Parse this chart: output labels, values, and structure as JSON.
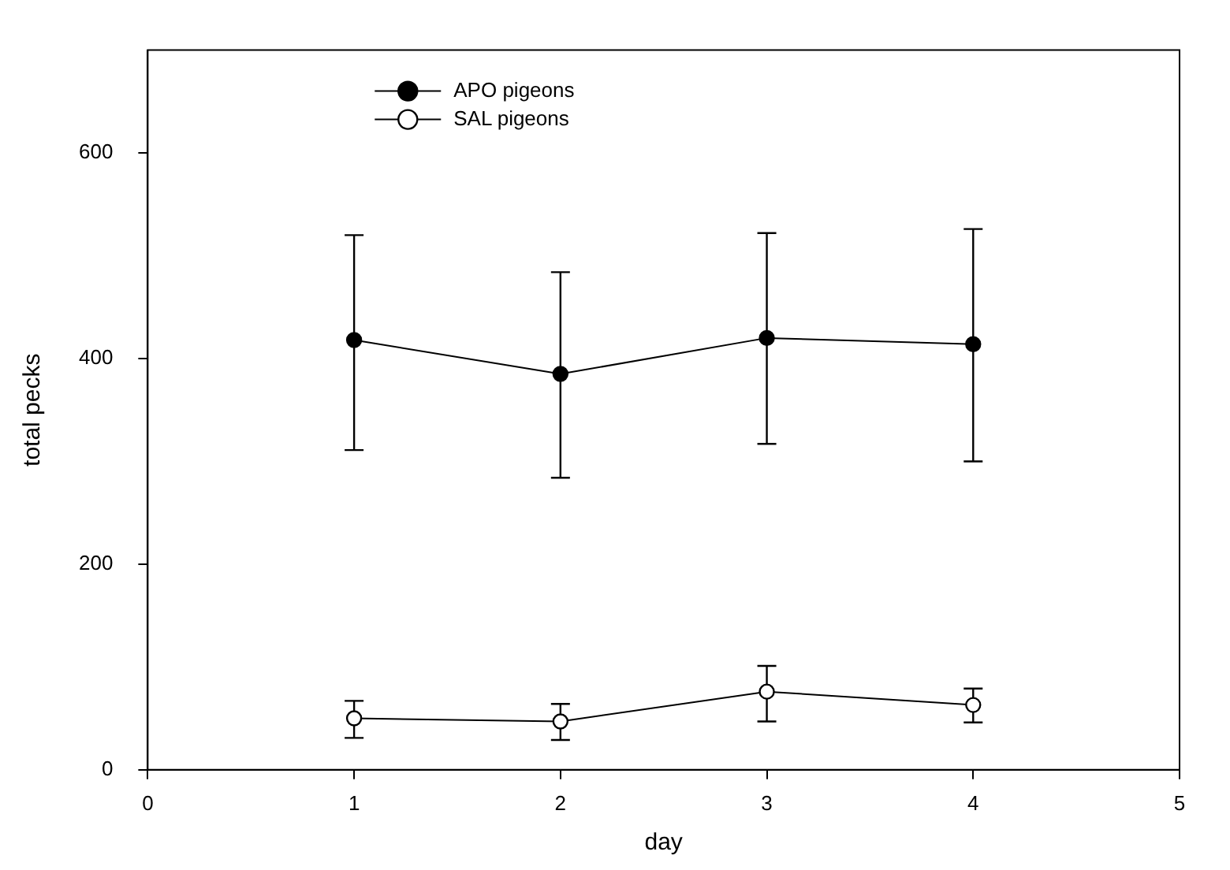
{
  "chart_data": {
    "type": "line",
    "xlabel": "day",
    "ylabel": "total pecks",
    "x": [
      1,
      2,
      3,
      4
    ],
    "series": [
      {
        "name": "APO pigeons",
        "color": "#000000",
        "values": [
          418,
          385,
          420,
          414
        ],
        "errors": [
          [
            311,
            520
          ],
          [
            284,
            484
          ],
          [
            317,
            522
          ],
          [
            300,
            526
          ]
        ]
      },
      {
        "name": "SAL pigeons",
        "color": "#000000",
        "values": [
          50,
          47,
          76,
          63
        ],
        "errors": [
          [
            31,
            67
          ],
          [
            29,
            64
          ],
          [
            47,
            101
          ],
          [
            46,
            79
          ]
        ]
      }
    ],
    "xlim": [
      0,
      5
    ],
    "xticks": [
      0,
      1,
      2,
      3,
      4,
      5
    ],
    "ylim": [
      0,
      700
    ],
    "yticks": [
      0,
      200,
      400,
      600
    ],
    "marker": "circle",
    "line_style": "solid",
    "legend": "top left",
    "grid": false
  }
}
